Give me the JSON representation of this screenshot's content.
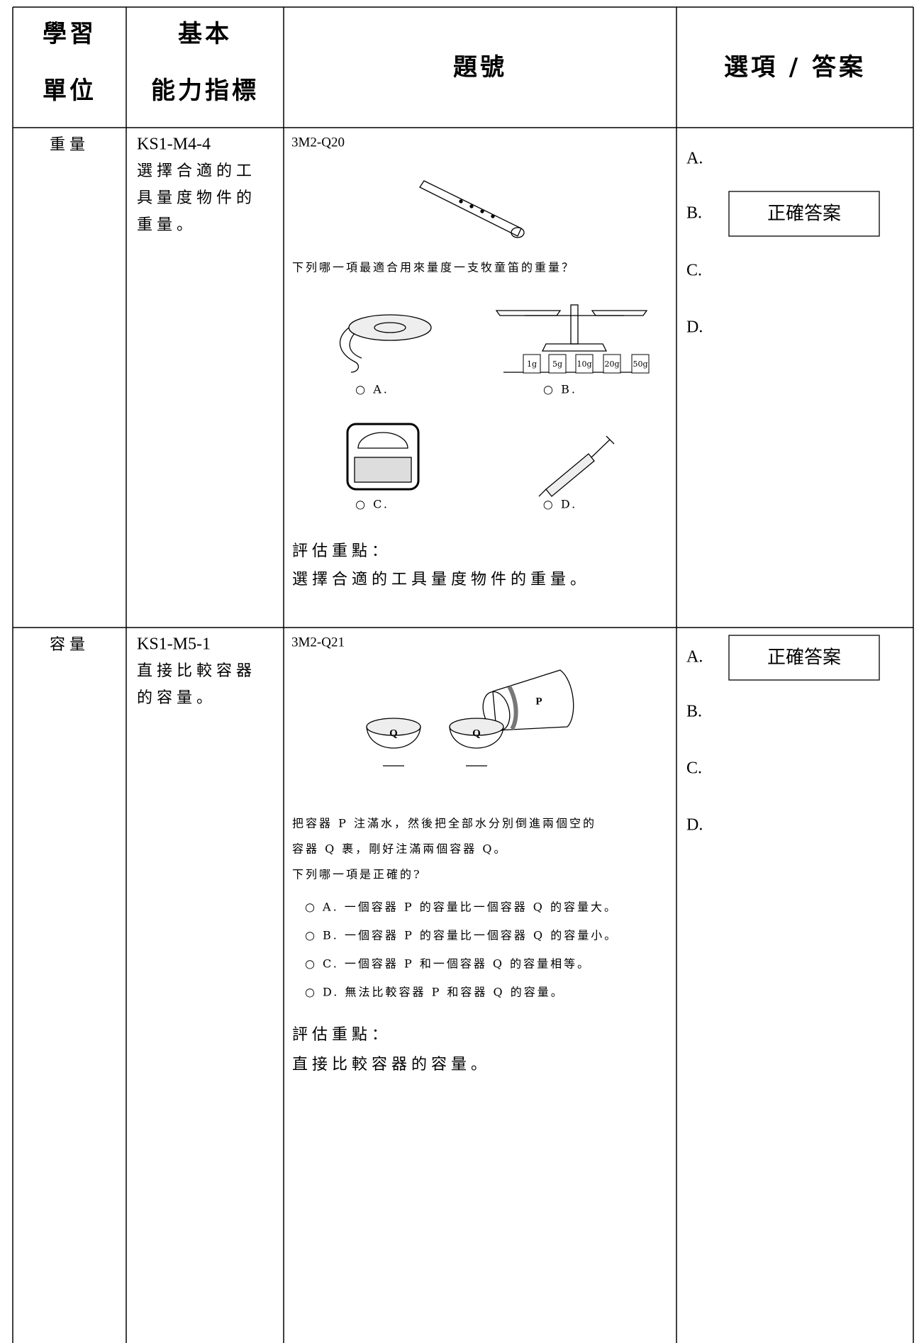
{
  "header": {
    "unit": [
      "學習",
      "單位"
    ],
    "indicator": [
      "基本",
      "能力指標"
    ],
    "question": "題號",
    "options": "選項 / 答案"
  },
  "rows": [
    {
      "unit": "重量",
      "indicator_code": "KS1-M4-4",
      "indicator_text": [
        "選擇合適的工",
        "具量度物件的",
        "重量。"
      ],
      "question_id": "3M2-Q20",
      "question_text": [
        "下列哪一項最適合用來量度一支牧童笛的重量？"
      ],
      "image_options": [
        "○ A.",
        "○ B.",
        "○ C.",
        "○ D."
      ],
      "weights": [
        "1g",
        "5g",
        "10g",
        "20g",
        "50g"
      ],
      "focus_label": "評估重點：",
      "focus_text": "選擇合適的工具量度物件的重量。",
      "answers": [
        "A.",
        "B.",
        "C.",
        "D."
      ],
      "correct_label": "正確答案",
      "correct_index": 1
    },
    {
      "unit": "容量",
      "indicator_code": "KS1-M5-1",
      "indicator_text": [
        "直接比較容器",
        "的容量。"
      ],
      "question_id": "3M2-Q21",
      "image_labels": [
        "P",
        "Q",
        "Q"
      ],
      "question_text": [
        "把容器 P 注滿水，然後把全部水分別倒進兩個空的",
        "容器 Q 裹，剛好注滿兩個容器 Q。",
        "下列哪一項是正確的?"
      ],
      "choices": [
        "○ A. 一個容器 P 的容量比一個容器 Q 的容量大。",
        "○ B. 一個容器 P 的容量比一個容器 Q 的容量小。",
        "○ C. 一個容器 P 和一個容器 Q 的容量相等。",
        "○ D. 無法比較容器 P 和容器 Q 的容量。"
      ],
      "focus_label": "評估重點：",
      "focus_text": "直接比較容器的容量。",
      "answers": [
        "A.",
        "B.",
        "C.",
        "D."
      ],
      "correct_label": "正確答案",
      "correct_index": 0
    }
  ]
}
